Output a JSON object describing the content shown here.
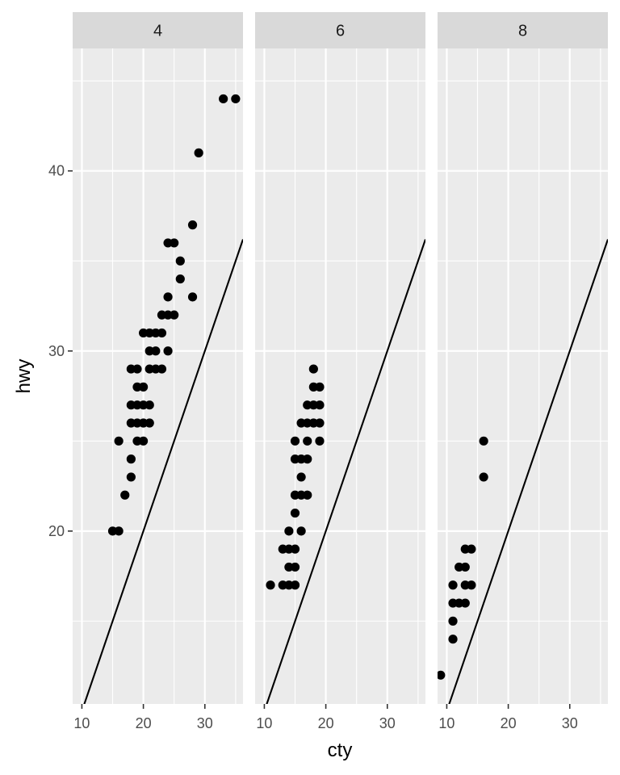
{
  "chart_data": {
    "type": "scatter",
    "xlabel": "cty",
    "ylabel": "hwy",
    "xlim": [
      8.5,
      36.2
    ],
    "ylim": [
      10.4,
      46.8
    ],
    "x_ticks": [
      10,
      20,
      30
    ],
    "y_ticks": [
      20,
      30,
      40
    ],
    "grid": true,
    "reference_line": {
      "slope": 1,
      "intercept": 0
    },
    "panel_background": "#EBEBEB",
    "strip_background": "#D9D9D9",
    "point_color": "#000000",
    "panels": [
      {
        "label": "4",
        "points": [
          [
            15,
            20
          ],
          [
            16,
            20
          ],
          [
            16,
            25
          ],
          [
            17,
            22
          ],
          [
            18,
            23
          ],
          [
            18,
            24
          ],
          [
            18,
            26
          ],
          [
            18,
            27
          ],
          [
            18,
            29
          ],
          [
            19,
            25
          ],
          [
            19,
            26
          ],
          [
            19,
            27
          ],
          [
            19,
            28
          ],
          [
            19,
            29
          ],
          [
            20,
            25
          ],
          [
            20,
            26
          ],
          [
            20,
            27
          ],
          [
            20,
            28
          ],
          [
            20,
            31
          ],
          [
            21,
            26
          ],
          [
            21,
            27
          ],
          [
            21,
            29
          ],
          [
            21,
            30
          ],
          [
            21,
            31
          ],
          [
            22,
            29
          ],
          [
            22,
            30
          ],
          [
            22,
            31
          ],
          [
            23,
            29
          ],
          [
            23,
            31
          ],
          [
            23,
            32
          ],
          [
            24,
            30
          ],
          [
            24,
            32
          ],
          [
            24,
            33
          ],
          [
            24,
            36
          ],
          [
            25,
            32
          ],
          [
            25,
            36
          ],
          [
            26,
            34
          ],
          [
            26,
            35
          ],
          [
            28,
            33
          ],
          [
            28,
            37
          ],
          [
            29,
            41
          ],
          [
            33,
            44
          ],
          [
            35,
            44
          ]
        ]
      },
      {
        "label": "6",
        "points": [
          [
            11,
            17
          ],
          [
            13,
            17
          ],
          [
            13,
            19
          ],
          [
            14,
            17
          ],
          [
            14,
            18
          ],
          [
            14,
            19
          ],
          [
            14,
            20
          ],
          [
            15,
            17
          ],
          [
            15,
            18
          ],
          [
            15,
            19
          ],
          [
            15,
            21
          ],
          [
            15,
            22
          ],
          [
            15,
            24
          ],
          [
            15,
            25
          ],
          [
            16,
            20
          ],
          [
            16,
            22
          ],
          [
            16,
            23
          ],
          [
            16,
            24
          ],
          [
            16,
            26
          ],
          [
            17,
            22
          ],
          [
            17,
            24
          ],
          [
            17,
            25
          ],
          [
            17,
            26
          ],
          [
            17,
            27
          ],
          [
            18,
            26
          ],
          [
            18,
            27
          ],
          [
            18,
            28
          ],
          [
            18,
            29
          ],
          [
            19,
            25
          ],
          [
            19,
            26
          ],
          [
            19,
            27
          ],
          [
            19,
            28
          ]
        ]
      },
      {
        "label": "8",
        "points": [
          [
            9,
            12
          ],
          [
            11,
            14
          ],
          [
            11,
            15
          ],
          [
            11,
            16
          ],
          [
            11,
            17
          ],
          [
            12,
            16
          ],
          [
            12,
            18
          ],
          [
            13,
            16
          ],
          [
            13,
            17
          ],
          [
            13,
            18
          ],
          [
            13,
            19
          ],
          [
            14,
            17
          ],
          [
            14,
            19
          ],
          [
            16,
            23
          ],
          [
            16,
            25
          ]
        ]
      }
    ]
  }
}
